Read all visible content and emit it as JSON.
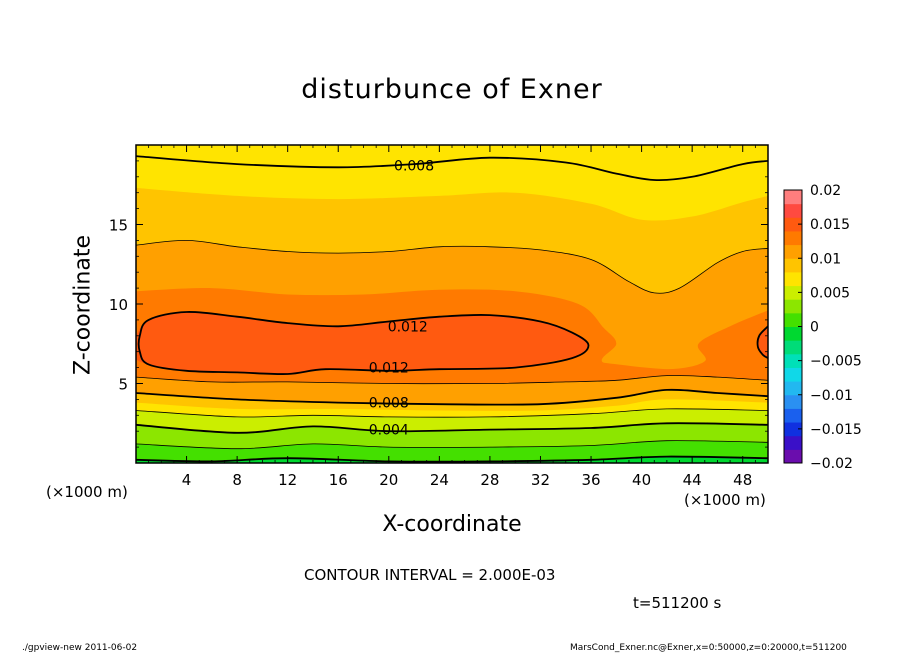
{
  "chart_data": {
    "type": "heatmap",
    "title": "disturbunce of Exner",
    "xlabel": "X-coordinate",
    "ylabel": "Z-coordinate",
    "x_unit_label": "(×1000 m)",
    "xlim": [
      0,
      50
    ],
    "ylim": [
      0,
      20
    ],
    "x_ticks": [
      4,
      8,
      12,
      16,
      20,
      24,
      28,
      32,
      36,
      40,
      44,
      48
    ],
    "y_ticks": [
      5,
      10,
      15
    ],
    "colorbar": {
      "levels": [
        -0.02,
        -0.018,
        -0.016,
        -0.014,
        -0.012,
        -0.01,
        -0.008,
        -0.006,
        -0.004,
        -0.002,
        0,
        0.002,
        0.004,
        0.006,
        0.008,
        0.01,
        0.012,
        0.014,
        0.016,
        0.018,
        0.02
      ],
      "colors": [
        "#6a0dad",
        "#3a10c8",
        "#1030e0",
        "#1a60ee",
        "#2a90f2",
        "#22b8f0",
        "#10d8e8",
        "#00e0b8",
        "#00dc78",
        "#00d830",
        "#44e000",
        "#8ce600",
        "#cbee00",
        "#ffe400",
        "#ffc400",
        "#ffa000",
        "#ff7a00",
        "#ff5a10",
        "#ff4a40",
        "#ff7e7e"
      ],
      "tick_labels": [
        "0.02",
        "0.015",
        "0.01",
        "0.005",
        "0",
        "−0.005",
        "−0.01",
        "−0.015",
        "−0.02"
      ],
      "tick_values": [
        0.02,
        0.015,
        0.01,
        0.005,
        0,
        -0.005,
        -0.01,
        -0.015,
        -0.02
      ]
    },
    "contour_interval": 0.002,
    "contour_labels": [
      {
        "text": "0.008",
        "x": 22,
        "z": 18.7
      },
      {
        "text": "0.012",
        "x": 21.5,
        "z": 8.6
      },
      {
        "text": "0.012",
        "x": 20,
        "z": 6.0
      },
      {
        "text": "0.008",
        "x": 20,
        "z": 3.8
      },
      {
        "text": "0.004",
        "x": 20,
        "z": 2.1
      }
    ],
    "contours": [
      {
        "value": 0.008,
        "style": "thick",
        "points": [
          [
            0,
            19.3
          ],
          [
            8,
            18.8
          ],
          [
            16,
            18.6
          ],
          [
            22,
            18.8
          ],
          [
            28,
            19.2
          ],
          [
            34,
            18.9
          ],
          [
            38,
            18.2
          ],
          [
            41,
            17.8
          ],
          [
            44,
            18.0
          ],
          [
            48,
            18.8
          ],
          [
            50,
            19.0
          ]
        ]
      },
      {
        "value": 0.01,
        "style": "thin",
        "points": [
          [
            0,
            13.7
          ],
          [
            4,
            14.0
          ],
          [
            8,
            13.6
          ],
          [
            12,
            13.3
          ],
          [
            16,
            13.2
          ],
          [
            20,
            13.3
          ],
          [
            24,
            13.6
          ],
          [
            28,
            13.6
          ],
          [
            32,
            13.4
          ],
          [
            36,
            12.8
          ],
          [
            39,
            11.4
          ],
          [
            41,
            10.7
          ],
          [
            43,
            11.0
          ],
          [
            46,
            12.6
          ],
          [
            48,
            13.3
          ],
          [
            50,
            13.5
          ]
        ]
      },
      {
        "value": 0.012,
        "style": "thick",
        "closed": true,
        "points": [
          [
            0.3,
            8.0
          ],
          [
            1,
            9.0
          ],
          [
            4,
            9.5
          ],
          [
            8,
            9.2
          ],
          [
            12,
            8.8
          ],
          [
            16,
            8.6
          ],
          [
            20,
            8.9
          ],
          [
            24,
            9.2
          ],
          [
            28,
            9.3
          ],
          [
            32,
            8.9
          ],
          [
            34.5,
            8.2
          ],
          [
            35.8,
            7.4
          ],
          [
            34.5,
            6.6
          ],
          [
            30,
            6.0
          ],
          [
            24,
            5.9
          ],
          [
            20,
            5.8
          ],
          [
            15,
            5.9
          ],
          [
            12,
            5.6
          ],
          [
            8,
            5.7
          ],
          [
            4,
            5.8
          ],
          [
            1,
            6.2
          ],
          [
            0.3,
            7.0
          ]
        ]
      },
      {
        "value": 0.012,
        "style": "thick",
        "points": [
          [
            50,
            8.6
          ],
          [
            49.3,
            8.0
          ],
          [
            49.2,
            7.3
          ],
          [
            49.6,
            6.8
          ],
          [
            50,
            6.6
          ]
        ]
      },
      {
        "value": 0.01,
        "style": "thin",
        "points": [
          [
            0,
            5.4
          ],
          [
            6,
            5.1
          ],
          [
            12,
            5.1
          ],
          [
            20,
            5.0
          ],
          [
            28,
            5.0
          ],
          [
            34,
            5.1
          ],
          [
            38,
            5.2
          ],
          [
            42,
            5.5
          ],
          [
            46,
            5.4
          ],
          [
            50,
            5.2
          ]
        ]
      },
      {
        "value": 0.008,
        "style": "thick",
        "points": [
          [
            0,
            4.4
          ],
          [
            8,
            4.0
          ],
          [
            16,
            3.8
          ],
          [
            24,
            3.7
          ],
          [
            32,
            3.7
          ],
          [
            38,
            4.1
          ],
          [
            42,
            4.6
          ],
          [
            46,
            4.4
          ],
          [
            50,
            4.2
          ]
        ]
      },
      {
        "value": 0.006,
        "style": "thin",
        "points": [
          [
            0,
            3.3
          ],
          [
            8,
            2.9
          ],
          [
            14,
            3.0
          ],
          [
            20,
            2.9
          ],
          [
            28,
            2.9
          ],
          [
            36,
            3.1
          ],
          [
            42,
            3.4
          ],
          [
            50,
            3.3
          ]
        ]
      },
      {
        "value": 0.004,
        "style": "thick",
        "points": [
          [
            0,
            2.4
          ],
          [
            8,
            1.9
          ],
          [
            14,
            2.3
          ],
          [
            20,
            2.0
          ],
          [
            28,
            2.1
          ],
          [
            36,
            2.2
          ],
          [
            42,
            2.5
          ],
          [
            50,
            2.4
          ]
        ]
      },
      {
        "value": 0.002,
        "style": "thin",
        "points": [
          [
            0,
            1.2
          ],
          [
            8,
            0.9
          ],
          [
            14,
            1.2
          ],
          [
            20,
            1.0
          ],
          [
            28,
            1.0
          ],
          [
            36,
            1.1
          ],
          [
            42,
            1.4
          ],
          [
            50,
            1.3
          ]
        ]
      },
      {
        "value": 0.0,
        "style": "thick",
        "points": [
          [
            0,
            0.2
          ],
          [
            6,
            0.1
          ],
          [
            12,
            0.3
          ],
          [
            20,
            0.1
          ],
          [
            28,
            0.1
          ],
          [
            36,
            0.2
          ],
          [
            42,
            0.4
          ],
          [
            50,
            0.3
          ]
        ]
      }
    ],
    "fill_bands": [
      {
        "color": "#ffe400",
        "points": [
          [
            0,
            20
          ],
          [
            50,
            20
          ],
          [
            50,
            0
          ],
          [
            0,
            0
          ]
        ]
      },
      {
        "color": "#ffc400",
        "points": [
          [
            0,
            17.3
          ],
          [
            8,
            16.8
          ],
          [
            16,
            16.6
          ],
          [
            24,
            16.8
          ],
          [
            30,
            17.0
          ],
          [
            36,
            16.3
          ],
          [
            40,
            15.3
          ],
          [
            44,
            15.5
          ],
          [
            48,
            16.4
          ],
          [
            50,
            16.8
          ],
          [
            50,
            0
          ],
          [
            0,
            0
          ]
        ]
      },
      {
        "color": "#ffa000",
        "points": [
          [
            0,
            13.7
          ],
          [
            4,
            14.0
          ],
          [
            8,
            13.6
          ],
          [
            12,
            13.3
          ],
          [
            16,
            13.2
          ],
          [
            20,
            13.3
          ],
          [
            24,
            13.6
          ],
          [
            28,
            13.6
          ],
          [
            32,
            13.4
          ],
          [
            36,
            12.8
          ],
          [
            39,
            11.4
          ],
          [
            41,
            10.7
          ],
          [
            43,
            11.0
          ],
          [
            46,
            12.6
          ],
          [
            48,
            13.3
          ],
          [
            50,
            13.5
          ],
          [
            50,
            0
          ],
          [
            0,
            0
          ]
        ]
      },
      {
        "color": "#ff7a00",
        "points": [
          [
            0,
            10.8
          ],
          [
            6,
            11.0
          ],
          [
            12,
            10.6
          ],
          [
            18,
            10.6
          ],
          [
            24,
            10.9
          ],
          [
            30,
            10.8
          ],
          [
            35,
            10.0
          ],
          [
            37,
            8.5
          ],
          [
            38,
            7.5
          ],
          [
            37,
            6.3
          ],
          [
            42,
            5.9
          ],
          [
            45,
            6.4
          ],
          [
            44.5,
            7.5
          ],
          [
            47,
            8.6
          ],
          [
            50,
            9.6
          ],
          [
            50,
            0
          ],
          [
            0,
            0
          ]
        ]
      },
      {
        "color": "#ff5a10",
        "points": [
          [
            0,
            8.0
          ],
          [
            1,
            9.0
          ],
          [
            4,
            9.5
          ],
          [
            8,
            9.2
          ],
          [
            12,
            8.8
          ],
          [
            16,
            8.6
          ],
          [
            20,
            8.9
          ],
          [
            24,
            9.2
          ],
          [
            28,
            9.3
          ],
          [
            32,
            8.9
          ],
          [
            34.5,
            8.2
          ],
          [
            35.8,
            7.4
          ],
          [
            34.5,
            6.6
          ],
          [
            30,
            6.0
          ],
          [
            24,
            5.9
          ],
          [
            20,
            5.8
          ],
          [
            15,
            5.9
          ],
          [
            12,
            5.6
          ],
          [
            8,
            5.7
          ],
          [
            4,
            5.8
          ],
          [
            1,
            6.2
          ],
          [
            0,
            6.5
          ]
        ]
      },
      {
        "color": "#ff5a10",
        "points": [
          [
            50,
            8.6
          ],
          [
            49.3,
            8.0
          ],
          [
            49.2,
            7.3
          ],
          [
            49.6,
            6.8
          ],
          [
            50,
            6.6
          ]
        ]
      },
      {
        "color": "#ff7a00",
        "points": [
          [
            0,
            6.5
          ],
          [
            1,
            6.2
          ],
          [
            4,
            5.8
          ],
          [
            8,
            5.7
          ],
          [
            12,
            5.6
          ],
          [
            15,
            5.9
          ],
          [
            20,
            5.8
          ],
          [
            24,
            5.9
          ],
          [
            30,
            6.0
          ],
          [
            34.5,
            6.6
          ],
          [
            37,
            6.3
          ],
          [
            42,
            5.9
          ],
          [
            46,
            6.0
          ],
          [
            50,
            6.2
          ],
          [
            50,
            0
          ],
          [
            0,
            0
          ]
        ]
      },
      {
        "color": "#ffa000",
        "points": [
          [
            0,
            5.4
          ],
          [
            6,
            5.1
          ],
          [
            12,
            5.1
          ],
          [
            20,
            5.0
          ],
          [
            28,
            5.0
          ],
          [
            34,
            5.1
          ],
          [
            38,
            5.2
          ],
          [
            42,
            5.5
          ],
          [
            46,
            5.4
          ],
          [
            50,
            5.2
          ],
          [
            50,
            0
          ],
          [
            0,
            0
          ]
        ]
      },
      {
        "color": "#ffc400",
        "points": [
          [
            0,
            4.4
          ],
          [
            8,
            4.0
          ],
          [
            16,
            3.8
          ],
          [
            24,
            3.7
          ],
          [
            32,
            3.7
          ],
          [
            38,
            4.1
          ],
          [
            42,
            4.6
          ],
          [
            46,
            4.4
          ],
          [
            50,
            4.2
          ],
          [
            50,
            0
          ],
          [
            0,
            0
          ]
        ]
      },
      {
        "color": "#ffe400",
        "points": [
          [
            0,
            3.8
          ],
          [
            8,
            3.4
          ],
          [
            16,
            3.4
          ],
          [
            24,
            3.3
          ],
          [
            32,
            3.3
          ],
          [
            38,
            3.6
          ],
          [
            42,
            4.0
          ],
          [
            50,
            3.8
          ],
          [
            50,
            0
          ],
          [
            0,
            0
          ]
        ]
      },
      {
        "color": "#cbee00",
        "points": [
          [
            0,
            3.3
          ],
          [
            8,
            2.9
          ],
          [
            14,
            3.0
          ],
          [
            20,
            2.9
          ],
          [
            28,
            2.9
          ],
          [
            36,
            3.1
          ],
          [
            42,
            3.4
          ],
          [
            50,
            3.3
          ],
          [
            50,
            0
          ],
          [
            0,
            0
          ]
        ]
      },
      {
        "color": "#8ce600",
        "points": [
          [
            0,
            2.4
          ],
          [
            8,
            1.9
          ],
          [
            14,
            2.3
          ],
          [
            20,
            2.0
          ],
          [
            28,
            2.1
          ],
          [
            36,
            2.2
          ],
          [
            42,
            2.5
          ],
          [
            50,
            2.4
          ],
          [
            50,
            0
          ],
          [
            0,
            0
          ]
        ]
      },
      {
        "color": "#44e000",
        "points": [
          [
            0,
            1.2
          ],
          [
            8,
            0.9
          ],
          [
            14,
            1.2
          ],
          [
            20,
            1.0
          ],
          [
            28,
            1.0
          ],
          [
            36,
            1.1
          ],
          [
            42,
            1.4
          ],
          [
            50,
            1.3
          ],
          [
            50,
            0
          ],
          [
            0,
            0
          ]
        ]
      },
      {
        "color": "#00d830",
        "points": [
          [
            0,
            0.2
          ],
          [
            6,
            0.1
          ],
          [
            12,
            0.3
          ],
          [
            20,
            0.1
          ],
          [
            28,
            0.1
          ],
          [
            36,
            0.2
          ],
          [
            42,
            0.4
          ],
          [
            50,
            0.3
          ],
          [
            50,
            0
          ],
          [
            0,
            0
          ]
        ]
      }
    ]
  },
  "annotations": {
    "contour_interval_text": "CONTOUR INTERVAL = 2.000E-03",
    "time_text": "t=511200 s",
    "footer_left": "./gpview-new   2011-06-02",
    "footer_right": "MarsCond_Exner.nc@Exner,x=0:50000,z=0:20000,t=511200"
  }
}
